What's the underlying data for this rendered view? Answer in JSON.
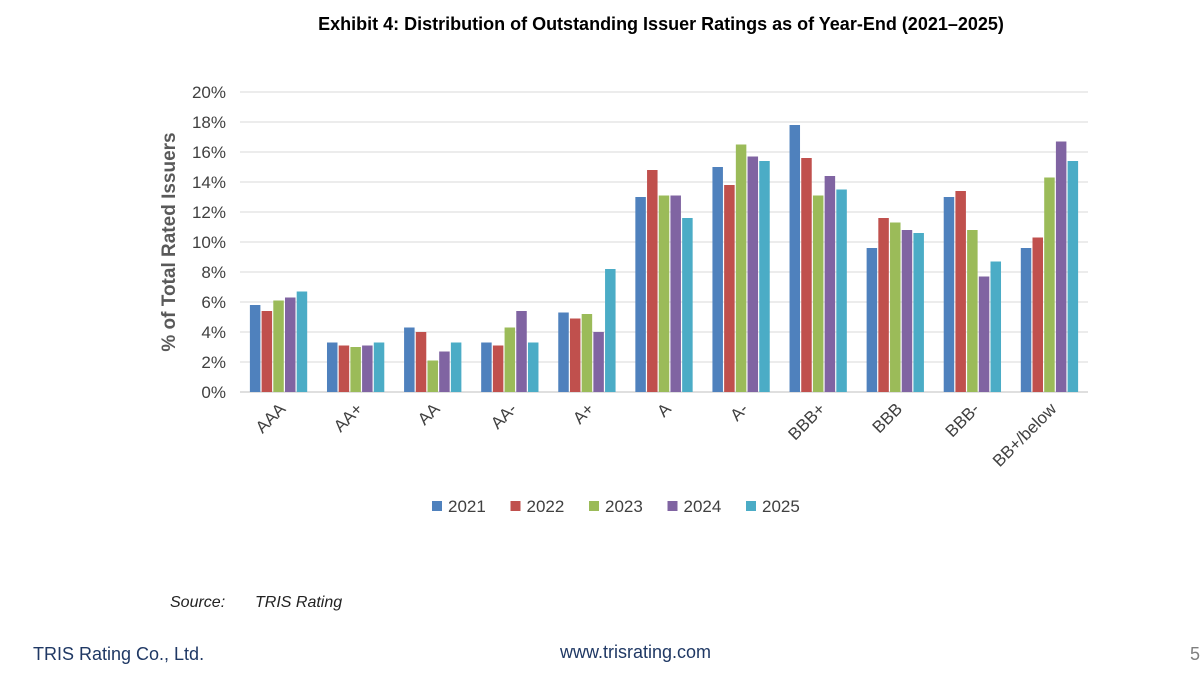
{
  "chart_data": {
    "type": "bar",
    "title": "Exhibit 4: Distribution of Outstanding Issuer Ratings as of Year-End (2021–2025)",
    "xlabel": "",
    "ylabel": "% of Total Rated Issuers",
    "ylim": [
      0,
      20
    ],
    "yticks": [
      "0%",
      "2%",
      "4%",
      "6%",
      "8%",
      "10%",
      "12%",
      "14%",
      "16%",
      "18%",
      "20%"
    ],
    "grid": true,
    "legend_position": "bottom",
    "categories": [
      "AAA",
      "AA+",
      "AA",
      "AA-",
      "A+",
      "A",
      "A-",
      "BBB+",
      "BBB",
      "BBB-",
      "BB+/below"
    ],
    "series": [
      {
        "name": "2021",
        "color": "#4f81bd",
        "values": [
          5.8,
          3.3,
          4.3,
          3.3,
          5.3,
          13.0,
          15.0,
          17.8,
          9.6,
          13.0,
          9.6
        ]
      },
      {
        "name": "2022",
        "color": "#c0504d",
        "values": [
          5.4,
          3.1,
          4.0,
          3.1,
          4.9,
          14.8,
          13.8,
          15.6,
          11.6,
          13.4,
          10.3
        ]
      },
      {
        "name": "2023",
        "color": "#9bbb59",
        "values": [
          6.1,
          3.0,
          2.1,
          4.3,
          5.2,
          13.1,
          16.5,
          13.1,
          11.3,
          10.8,
          14.3
        ]
      },
      {
        "name": "2024",
        "color": "#8064a2",
        "values": [
          6.3,
          3.1,
          2.7,
          5.4,
          4.0,
          13.1,
          15.7,
          14.4,
          10.8,
          7.7,
          16.7
        ]
      },
      {
        "name": "2025",
        "color": "#4bacc6",
        "values": [
          6.7,
          3.3,
          3.3,
          3.3,
          8.2,
          11.6,
          15.4,
          13.5,
          10.6,
          8.7,
          15.4
        ]
      }
    ]
  },
  "footer": {
    "source_label": "Source:",
    "source_value": "TRIS Rating",
    "company": "TRIS Rating Co., Ltd.",
    "website": "www.trisrating.com",
    "page_number": "5"
  }
}
